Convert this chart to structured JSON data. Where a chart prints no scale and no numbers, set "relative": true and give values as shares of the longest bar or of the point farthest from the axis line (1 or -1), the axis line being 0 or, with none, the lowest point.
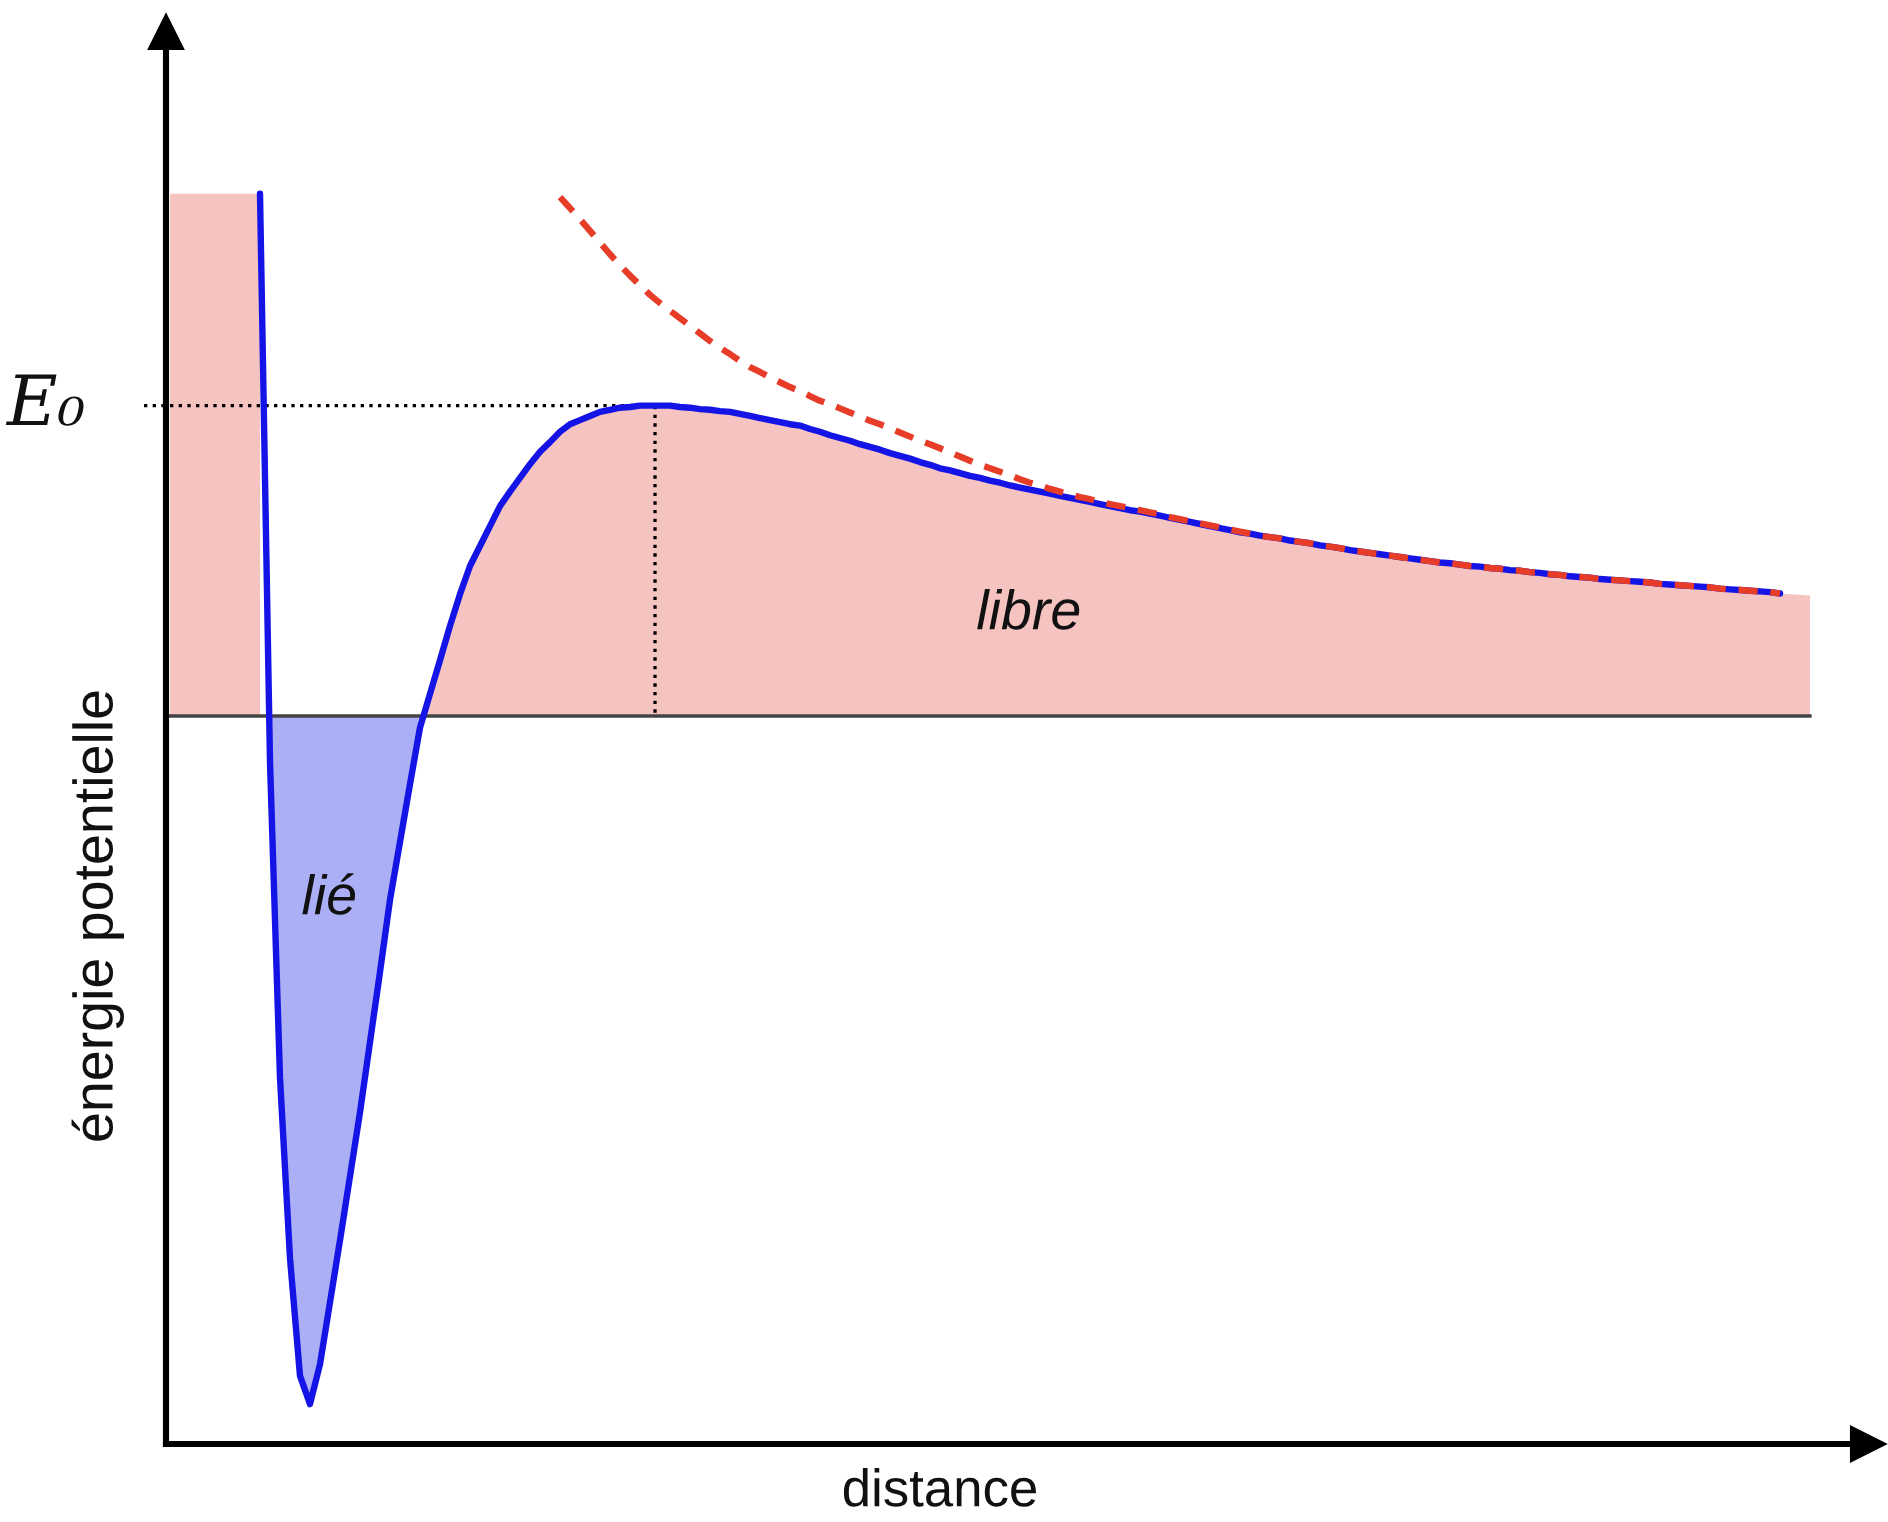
{
  "chart_data": {
    "type": "line",
    "relative": true,
    "xlabel": "distance",
    "ylabel": "énergie potentielle",
    "categories": [
      null,
      null,
      null,
      null,
      null,
      null,
      null,
      null,
      null,
      null,
      null,
      null,
      null,
      null,
      null,
      null,
      null,
      null,
      null,
      null,
      null,
      null,
      null,
      null,
      null,
      null,
      null,
      null,
      null,
      null,
      null,
      null,
      null,
      null,
      null,
      null,
      null,
      null,
      null,
      null,
      null,
      null,
      null,
      null,
      null,
      null,
      null,
      null,
      null,
      null,
      null,
      null,
      null,
      null,
      null,
      null,
      null,
      null,
      null,
      null,
      null,
      null,
      null,
      null,
      null,
      null,
      null,
      null,
      null,
      null,
      null,
      null,
      null,
      null,
      null,
      null,
      null,
      null,
      null,
      null,
      null,
      null,
      null,
      null,
      null,
      null,
      null,
      null,
      null,
      null,
      null,
      null,
      null,
      null,
      null,
      null,
      null,
      null,
      null,
      null,
      null,
      null,
      null,
      null,
      null,
      null,
      null,
      null,
      null,
      null,
      null,
      null,
      null,
      null,
      null,
      null,
      null,
      null,
      null,
      null,
      null,
      null,
      null,
      null,
      null,
      null,
      null,
      null,
      null,
      null,
      null,
      null,
      null,
      null,
      null,
      null,
      null,
      null,
      null,
      null,
      null,
      null,
      null,
      null,
      null,
      null,
      null,
      null,
      null,
      null,
      null,
      null,
      null,
      null,
      null,
      null,
      null,
      null,
      null,
      null,
      null,
      null,
      null,
      null,
      null
    ],
    "series": [
      {
        "type": "area",
        "name": "libre",
        "color": "#f5c3c0",
        "values": [
          0.759,
          0.759,
          0.759,
          0.759,
          0.759,
          0.759,
          0.759,
          0.759,
          0.759,
          0.759,
          null,
          null,
          null,
          null,
          null,
          null,
          null,
          null,
          null,
          null,
          null,
          null,
          null,
          null,
          null,
          0,
          0.032,
          0.081,
          0.131,
          0.177,
          0.218,
          0.247,
          0.276,
          0.305,
          0.326,
          0.346,
          0.366,
          0.384,
          0.398,
          0.413,
          0.424,
          0.43,
          0.436,
          0.442,
          0.445,
          0.448,
          0.449,
          0.451,
          0.451,
          0.451,
          0.451,
          0.449,
          0.448,
          0.446,
          0.445,
          0.443,
          0.442,
          0.439,
          0.436,
          0.433,
          0.43,
          0.427,
          0.424,
          0.422,
          0.417,
          0.413,
          0.408,
          0.404,
          0.4,
          0.395,
          0.391,
          0.387,
          0.382,
          0.378,
          0.374,
          0.369,
          0.365,
          0.36,
          0.357,
          0.353,
          0.349,
          0.346,
          0.342,
          0.339,
          0.335,
          0.332,
          0.329,
          0.326,
          0.323,
          0.32,
          0.317,
          0.314,
          0.311,
          0.308,
          0.305,
          0.302,
          0.299,
          0.297,
          0.294,
          0.291,
          0.288,
          0.285,
          0.282,
          0.279,
          0.276,
          0.273,
          0.27,
          0.267,
          0.265,
          0.262,
          0.26,
          0.258,
          0.255,
          0.253,
          0.251,
          0.248,
          0.246,
          0.244,
          0.241,
          0.239,
          0.237,
          0.235,
          0.233,
          0.231,
          0.229,
          0.227,
          0.225,
          0.223,
          0.222,
          0.22,
          0.218,
          0.217,
          0.215,
          0.214,
          0.212,
          0.211,
          0.209,
          0.208,
          0.206,
          0.205,
          0.203,
          0.202,
          0.201,
          0.199,
          0.198,
          0.197,
          0.196,
          0.195,
          0.194,
          0.192,
          0.191,
          0.19,
          0.189,
          0.188,
          0.187,
          0.185,
          0.184,
          0.183,
          0.182,
          0.181,
          0.18,
          0.178,
          0.177,
          0.176,
          0.175
        ]
      },
      {
        "type": "area",
        "name": "lié",
        "color": "#abaff5",
        "values": [
          null,
          null,
          null,
          null,
          null,
          null,
          null,
          null,
          null,
          null,
          -0.067,
          -0.526,
          -0.788,
          -0.959,
          -1,
          -0.942,
          -0.852,
          -0.762,
          -0.669,
          -0.576,
          -0.474,
          -0.372,
          -0.267,
          -0.183,
          -0.099,
          -0.017,
          null,
          null,
          null,
          null,
          null,
          null,
          null,
          null,
          null,
          null,
          null,
          null,
          null,
          null,
          null,
          null,
          null,
          null,
          null,
          null,
          null,
          null,
          null,
          null,
          null,
          null,
          null,
          null,
          null,
          null,
          null,
          null,
          null,
          null,
          null,
          null,
          null,
          null,
          null,
          null,
          null,
          null,
          null,
          null,
          null,
          null,
          null,
          null,
          null,
          null,
          null,
          null,
          null,
          null,
          null,
          null,
          null,
          null,
          null,
          null,
          null,
          null,
          null,
          null,
          null,
          null,
          null,
          null,
          null,
          null,
          null,
          null,
          null,
          null,
          null,
          null,
          null,
          null,
          null,
          null,
          null,
          null,
          null,
          null,
          null,
          null,
          null,
          null,
          null,
          null,
          null,
          null,
          null,
          null,
          null,
          null,
          null,
          null,
          null,
          null,
          null,
          null,
          null,
          null,
          null,
          null,
          null,
          null,
          null,
          null,
          null,
          null,
          null,
          null,
          null,
          null,
          null,
          null,
          null,
          null,
          null,
          null,
          null,
          null,
          null,
          null,
          null,
          null,
          null,
          null,
          null,
          null,
          null,
          null,
          null,
          null,
          null,
          null,
          null
        ]
      },
      {
        "color": "#1414e6",
        "values": [
          null,
          null,
          null,
          null,
          null,
          null,
          null,
          null,
          null,
          0.759,
          -0.067,
          -0.526,
          -0.788,
          -0.959,
          -1,
          -0.942,
          -0.852,
          -0.762,
          -0.669,
          -0.576,
          -0.474,
          -0.372,
          -0.267,
          -0.183,
          -0.099,
          -0.017,
          0.032,
          0.081,
          0.131,
          0.177,
          0.218,
          0.247,
          0.276,
          0.305,
          0.326,
          0.346,
          0.366,
          0.384,
          0.398,
          0.413,
          0.424,
          0.43,
          0.436,
          0.442,
          0.445,
          0.448,
          0.449,
          0.451,
          0.451,
          0.451,
          0.451,
          0.449,
          0.448,
          0.446,
          0.445,
          0.443,
          0.442,
          0.439,
          0.436,
          0.433,
          0.43,
          0.427,
          0.424,
          0.422,
          0.417,
          0.413,
          0.408,
          0.404,
          0.4,
          0.395,
          0.391,
          0.387,
          0.382,
          0.378,
          0.374,
          0.369,
          0.365,
          0.36,
          0.357,
          0.353,
          0.349,
          0.346,
          0.342,
          0.339,
          0.335,
          0.332,
          0.329,
          0.326,
          0.323,
          0.32,
          0.317,
          0.314,
          0.311,
          0.308,
          0.305,
          0.302,
          0.299,
          0.297,
          0.294,
          0.291,
          0.288,
          0.285,
          0.282,
          0.279,
          0.276,
          0.273,
          0.27,
          0.267,
          0.265,
          0.262,
          0.26,
          0.258,
          0.255,
          0.253,
          0.251,
          0.248,
          0.246,
          0.244,
          0.241,
          0.239,
          0.237,
          0.235,
          0.233,
          0.231,
          0.229,
          0.227,
          0.225,
          0.223,
          0.222,
          0.22,
          0.218,
          0.217,
          0.215,
          0.214,
          0.212,
          0.211,
          0.209,
          0.208,
          0.206,
          0.205,
          0.203,
          0.202,
          0.201,
          0.199,
          0.198,
          0.197,
          0.196,
          0.195,
          0.194,
          0.192,
          0.191,
          0.19,
          0.189,
          0.188,
          0.187,
          0.185,
          0.184,
          0.183,
          0.182,
          0.181,
          0.18,
          0.178,
          null,
          null,
          null
        ]
      },
      {
        "color": "#e63c28",
        "line_style": "dashed",
        "values": [
          null,
          null,
          null,
          null,
          null,
          null,
          null,
          null,
          null,
          null,
          null,
          null,
          null,
          null,
          null,
          null,
          null,
          null,
          null,
          null,
          null,
          null,
          null,
          null,
          null,
          null,
          null,
          null,
          null,
          null,
          null,
          null,
          null,
          null,
          null,
          null,
          null,
          null,
          null,
          0.754,
          0.738,
          0.722,
          0.705,
          0.688,
          0.671,
          0.655,
          0.64,
          0.626,
          0.612,
          0.6,
          0.589,
          0.578,
          0.567,
          0.556,
          0.545,
          0.535,
          0.526,
          0.516,
          0.507,
          0.5,
          0.492,
          0.485,
          0.478,
          0.472,
          0.465,
          0.458,
          0.453,
          0.447,
          0.441,
          0.435,
          0.429,
          0.424,
          0.418,
          0.412,
          0.406,
          0.4,
          0.395,
          0.389,
          0.383,
          0.377,
          0.371,
          0.365,
          0.36,
          0.355,
          0.35,
          0.344,
          0.339,
          0.335,
          0.33,
          0.326,
          0.322,
          0.318,
          0.315,
          0.311,
          0.308,
          0.305,
          0.302,
          0.299,
          0.296,
          0.293,
          0.289,
          0.286,
          0.283,
          0.28,
          0.277,
          0.274,
          0.271,
          0.268,
          0.265,
          0.262,
          0.26,
          0.258,
          0.255,
          0.253,
          0.251,
          0.248,
          0.246,
          0.244,
          0.241,
          0.239,
          0.237,
          0.235,
          0.233,
          0.231,
          0.229,
          0.227,
          0.225,
          0.223,
          0.222,
          0.22,
          0.218,
          0.217,
          0.215,
          0.214,
          0.212,
          0.211,
          0.209,
          0.208,
          0.206,
          0.205,
          0.203,
          0.202,
          0.201,
          0.199,
          0.198,
          0.197,
          0.196,
          0.195,
          0.194,
          0.192,
          0.191,
          0.19,
          0.189,
          0.188,
          0.187,
          0.185,
          0.184,
          0.183,
          0.182,
          0.181,
          0.18,
          0.178,
          null,
          null,
          null
        ]
      }
    ],
    "ref_lines": [
      {
        "axis": "y",
        "value": 0,
        "color": "#444444"
      },
      {
        "axis": "y",
        "value": 0.451,
        "label": "E₀",
        "line_style": "dotted",
        "color": "#000000"
      }
    ]
  }
}
